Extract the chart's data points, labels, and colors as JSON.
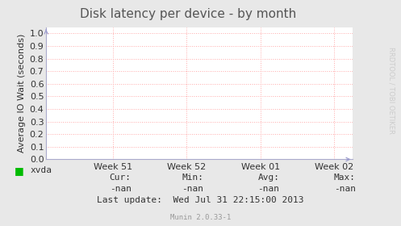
{
  "title": "Disk latency per device - by month",
  "ylabel": "Average IO Wait (seconds)",
  "background_color": "#e8e8e8",
  "plot_bg_color": "#ffffff",
  "grid_color": "#ffaaaa",
  "xlim": [
    0,
    4.15
  ],
  "ylim": [
    0.0,
    1.05
  ],
  "yticks": [
    0.0,
    0.1,
    0.2,
    0.3,
    0.4,
    0.5,
    0.6,
    0.7,
    0.8,
    0.9,
    1.0
  ],
  "xtick_labels": [
    "Week 51",
    "Week 52",
    "Week 01",
    "Week 02"
  ],
  "xtick_positions": [
    0.9,
    1.9,
    2.9,
    3.9
  ],
  "legend_label": "xvda",
  "legend_color": "#00bb00",
  "cur_label": "Cur:",
  "cur_val": "-nan",
  "min_label": "Min:",
  "min_val": "-nan",
  "avg_label": "Avg:",
  "avg_val": "-nan",
  "max_label": "Max:",
  "max_val": "-nan",
  "last_update": "Last update:  Wed Jul 31 22:15:00 2013",
  "munin_version": "Munin 2.0.33-1",
  "watermark": "RRDTOOL / TOBI OETIKER",
  "title_fontsize": 11,
  "title_color": "#555555",
  "axis_label_fontsize": 8,
  "tick_fontsize": 8,
  "footer_fontsize": 8,
  "border_color": "#aaaacc",
  "arrow_color": "#9999cc"
}
